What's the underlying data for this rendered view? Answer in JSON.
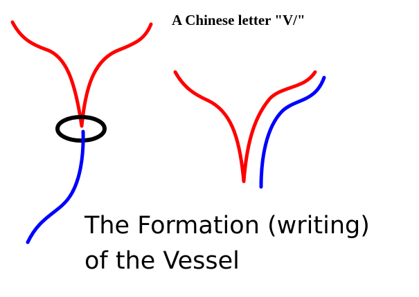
{
  "title": "A Chinese letter \"V/\"",
  "caption": {
    "lines": [
      "The Formation (writing)",
      "of the Vessel"
    ]
  }
}
